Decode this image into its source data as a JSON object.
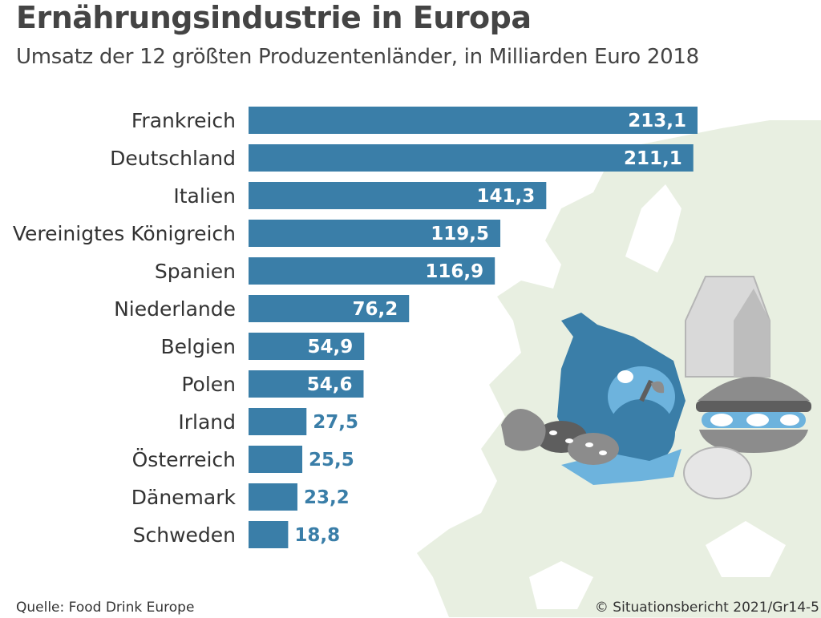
{
  "header": {
    "title": "Ernährungsindustrie in Europa",
    "subtitle": "Umsatz der 12 größten Produzentenländer, in Milliarden Euro 2018"
  },
  "footer": {
    "source": "Quelle: Food Drink Europe",
    "credit": "© Situationsbericht 2021/Gr14-5"
  },
  "colors": {
    "bar": "#3a7ea8",
    "value_inside": "#ffffff",
    "value_outside": "#3a7ea8",
    "map_land": "#e8efe1",
    "illustration_blue": "#3a7ea8",
    "illustration_lightblue": "#6db3dd",
    "illustration_grey": "#8c8c8c",
    "illustration_lightgrey": "#cfcfcf"
  },
  "chart_data": {
    "type": "bar",
    "orientation": "horizontal",
    "title": "Ernährungsindustrie in Europa",
    "subtitle": "Umsatz der 12 größten Produzentenländer, in Milliarden Euro 2018",
    "categories": [
      "Frankreich",
      "Deutschland",
      "Italien",
      "Vereinigtes Königreich",
      "Spanien",
      "Niederlande",
      "Belgien",
      "Polen",
      "Irland",
      "Österreich",
      "Dänemark",
      "Schweden"
    ],
    "values": [
      213.1,
      211.1,
      141.3,
      119.5,
      116.9,
      76.2,
      54.9,
      54.6,
      27.5,
      25.5,
      23.2,
      18.8
    ],
    "value_labels": [
      "213,1",
      "211,1",
      "141,3",
      "119,5",
      "116,9",
      "76,2",
      "54,9",
      "54,6",
      "27,5",
      "25,5",
      "23,2",
      "18,8"
    ],
    "xlim": [
      0,
      213.1
    ],
    "grid": false,
    "legend": "none",
    "xlabel": "",
    "ylabel": ""
  },
  "illustration": {
    "icons": [
      "europe-map-icon",
      "ham-icon",
      "apple-icon",
      "milk-carton-icon",
      "burger-icon",
      "bread-icon",
      "egg-icon",
      "fish-icon",
      "garlic-icon"
    ]
  }
}
